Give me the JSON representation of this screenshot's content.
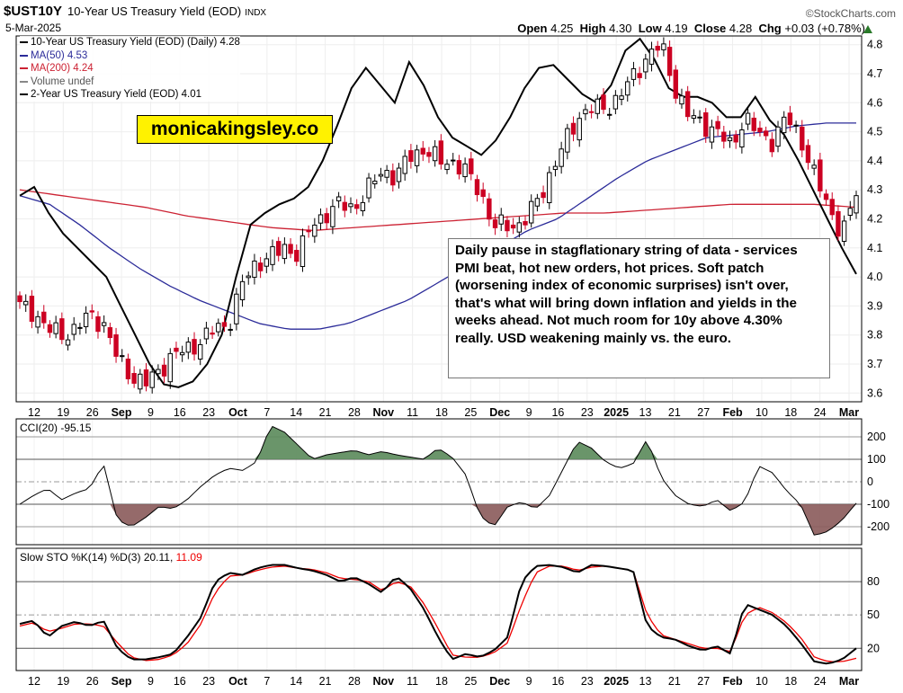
{
  "header": {
    "ticker": "$UST10Y",
    "title": "10-Year US Treasury Yield (EOD)",
    "exchange": "INDX",
    "date": "5-Mar-2025",
    "brand": "©StockCharts.com",
    "open_label": "Open",
    "open": "4.25",
    "high_label": "High",
    "high": "4.30",
    "low_label": "Low",
    "low": "4.19",
    "close_label": "Close",
    "close": "4.28",
    "chg_label": "Chg",
    "chg": "+0.03 (+0.78%)"
  },
  "legend": [
    {
      "text": "10-Year US Treasury Yield (EOD) (Daily) 4.28",
      "color": "#000000"
    },
    {
      "text": "MA(50) 4.53",
      "color": "#2b2b99"
    },
    {
      "text": "MA(200) 4.24",
      "color": "#cc2233"
    },
    {
      "text": "Volume undef",
      "color": "#888888"
    },
    {
      "text": "2-Year US Treasury Yield (EOD) 4.01",
      "color": "#000000"
    }
  ],
  "watermark": "monicakingsley.co",
  "comment": "Daily pause in stagflationary string of data - services PMI beat, hot new orders, hot prices. Soft patch (worsening index of economic surprises) isn't over, that's what will bring down inflation and yields in the weeks ahead. Not much room for 10y above 4.30% really. USD weakening mainly vs. the euro.",
  "colors": {
    "up": "#000000",
    "down": "#cc0022",
    "ma50": "#2b2b99",
    "ma200": "#cc2233",
    "cci_pos": "#5a8a5a",
    "cci_neg": "#8a5a5a",
    "sto_k": "#000000",
    "sto_d": "#ee0000"
  },
  "chart_data": [
    {
      "type": "candlestick",
      "title": "10-Year US Treasury Yield (EOD)",
      "y_axis_ticks": [
        4.8,
        4.7,
        4.6,
        4.5,
        4.4,
        4.3,
        4.2,
        4.1,
        4.0,
        3.9,
        3.8,
        3.7,
        3.6
      ],
      "ylim": [
        3.57,
        4.83
      ],
      "x_tick_labels": [
        "12",
        "19",
        "26",
        "Sep",
        "9",
        "16",
        "23",
        "Oct",
        "7",
        "14",
        "21",
        "28",
        "Nov",
        "11",
        "18",
        "25",
        "Dec",
        "9",
        "16",
        "23",
        "2025",
        "13",
        "21",
        "27",
        "Feb",
        "10",
        "18",
        "24",
        "Mar"
      ],
      "x_tick_bold": [
        "Sep",
        "Oct",
        "Nov",
        "Dec",
        "2025",
        "Feb",
        "Mar"
      ],
      "close_anchors": [
        3.9,
        3.88,
        3.82,
        3.8,
        3.82,
        3.87,
        3.84,
        3.72,
        3.66,
        3.63,
        3.68,
        3.73,
        3.75,
        3.78,
        3.82,
        3.84,
        3.98,
        4.05,
        4.07,
        4.1,
        4.08,
        4.18,
        4.22,
        4.25,
        4.24,
        4.3,
        4.37,
        4.34,
        4.42,
        4.44,
        4.4,
        4.4,
        4.36,
        4.3,
        4.17,
        4.18,
        4.18,
        4.25,
        4.35,
        4.45,
        4.55,
        4.58,
        4.58,
        4.62,
        4.69,
        4.76,
        4.8,
        4.65,
        4.55,
        4.53,
        4.5,
        4.45,
        4.55,
        4.49,
        4.47,
        4.55,
        4.48,
        4.35,
        4.24,
        4.15,
        4.28
      ],
      "ma50": [
        4.28,
        4.25,
        4.18,
        4.1,
        4.03,
        3.97,
        3.92,
        3.88,
        3.84,
        3.82,
        3.82,
        3.84,
        3.88,
        3.92,
        3.98,
        4.04,
        4.1,
        4.16,
        4.2,
        4.27,
        4.34,
        4.4,
        4.44,
        4.48,
        4.49,
        4.5,
        4.52,
        4.53,
        4.53
      ],
      "ma200": [
        4.3,
        4.28,
        4.26,
        4.24,
        4.21,
        4.19,
        4.17,
        4.16,
        4.17,
        4.18,
        4.19,
        4.2,
        4.21,
        4.22,
        4.22,
        4.23,
        4.24,
        4.25,
        4.25,
        4.25,
        4.24
      ],
      "second_series": {
        "name": "2-Year US Treasury Yield (EOD)",
        "last": 4.01,
        "values": [
          4.28,
          4.31,
          4.22,
          4.15,
          4.1,
          4.05,
          4.0,
          3.9,
          3.8,
          3.7,
          3.63,
          3.62,
          3.64,
          3.7,
          3.8,
          4.0,
          4.18,
          4.22,
          4.25,
          4.27,
          4.31,
          4.4,
          4.52,
          4.65,
          4.72,
          4.66,
          4.6,
          4.74,
          4.66,
          4.55,
          4.48,
          4.45,
          4.42,
          4.47,
          4.55,
          4.65,
          4.72,
          4.73,
          4.68,
          4.63,
          4.6,
          4.66,
          4.78,
          4.82,
          4.75,
          4.65,
          4.62,
          4.62,
          4.6,
          4.55,
          4.55,
          4.62,
          4.54,
          4.49,
          4.4,
          4.3,
          4.2,
          4.1,
          4.01
        ]
      }
    },
    {
      "type": "line",
      "title": "CCI(20)",
      "legend": "CCI(20) -95.15",
      "last": -95.15,
      "y_axis_ticks": [
        200,
        100,
        0,
        -100,
        -200
      ],
      "ylim": [
        -280,
        280
      ],
      "values": [
        -100,
        -60,
        -30,
        -80,
        -50,
        -30,
        80,
        -170,
        -200,
        -160,
        -110,
        -120,
        -80,
        -20,
        30,
        60,
        50,
        90,
        250,
        220,
        160,
        100,
        120,
        130,
        140,
        120,
        135,
        120,
        110,
        100,
        150,
        110,
        30,
        -150,
        -200,
        -110,
        -90,
        -120,
        -60,
        60,
        180,
        150,
        90,
        60,
        80,
        190,
        20,
        -60,
        -100,
        -110,
        -80,
        -130,
        -90,
        70,
        40,
        -40,
        -100,
        -240,
        -220,
        -170,
        -95
      ]
    },
    {
      "type": "line",
      "title": "Slow STO %K(14) %D(3)",
      "legend_prefix": "Slow STO %K(14) %D(3) 20.11,",
      "legend_d": "11.09",
      "k_last": 20.11,
      "d_last": 11.09,
      "y_axis_ticks": [
        80,
        50,
        20
      ],
      "ylim": [
        0,
        110
      ],
      "series": [
        {
          "name": "%K",
          "values": [
            42,
            45,
            30,
            40,
            44,
            40,
            45,
            20,
            10,
            10,
            12,
            15,
            30,
            48,
            80,
            88,
            86,
            92,
            95,
            95,
            92,
            90,
            86,
            80,
            84,
            78,
            70,
            85,
            74,
            55,
            30,
            10,
            15,
            12,
            18,
            30,
            80,
            94,
            95,
            93,
            88,
            95,
            94,
            92,
            90,
            40,
            30,
            28,
            22,
            18,
            22,
            15,
            60,
            55,
            50,
            40,
            25,
            8,
            6,
            10,
            20
          ]
        },
        {
          "name": "%D",
          "values": [
            40,
            43,
            35,
            38,
            42,
            42,
            40,
            25,
            12,
            9,
            10,
            14,
            24,
            42,
            70,
            85,
            86,
            90,
            93,
            94,
            92,
            91,
            88,
            83,
            82,
            80,
            72,
            80,
            76,
            60,
            38,
            14,
            12,
            12,
            16,
            25,
            60,
            88,
            94,
            94,
            90,
            93,
            94,
            92,
            90,
            50,
            32,
            28,
            24,
            20,
            20,
            17,
            50,
            57,
            52,
            43,
            30,
            12,
            8,
            8,
            11
          ]
        }
      ]
    }
  ]
}
